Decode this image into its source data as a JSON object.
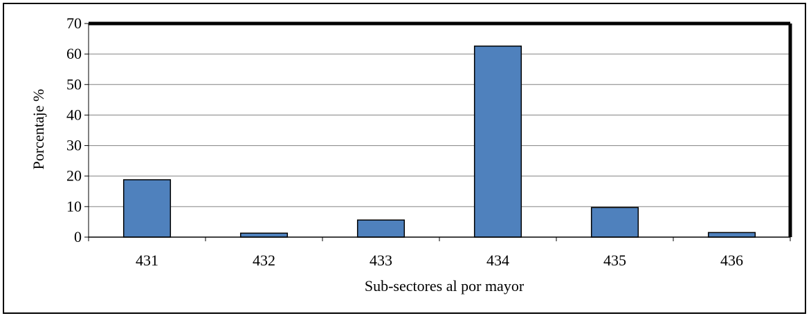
{
  "chart_data": {
    "type": "bar",
    "title": "",
    "xlabel": "Sub-sectores al por mayor",
    "ylabel": "Porcentaje %",
    "categories": [
      "431",
      "432",
      "433",
      "434",
      "435",
      "436"
    ],
    "values": [
      18.8,
      1.3,
      5.6,
      62.6,
      9.7,
      1.5
    ],
    "ylim": [
      0,
      70
    ],
    "yticks": [
      0,
      10,
      20,
      30,
      40,
      50,
      60,
      70
    ],
    "ytick_labels": [
      "0",
      "10",
      "20",
      "30",
      "40",
      "50",
      "60",
      "70"
    ],
    "grid": true,
    "legend": "none",
    "colors": {
      "bar_fill": "#4f81bd",
      "bar_stroke": "#000000",
      "grid": "#808080",
      "axis": "#000000"
    }
  }
}
